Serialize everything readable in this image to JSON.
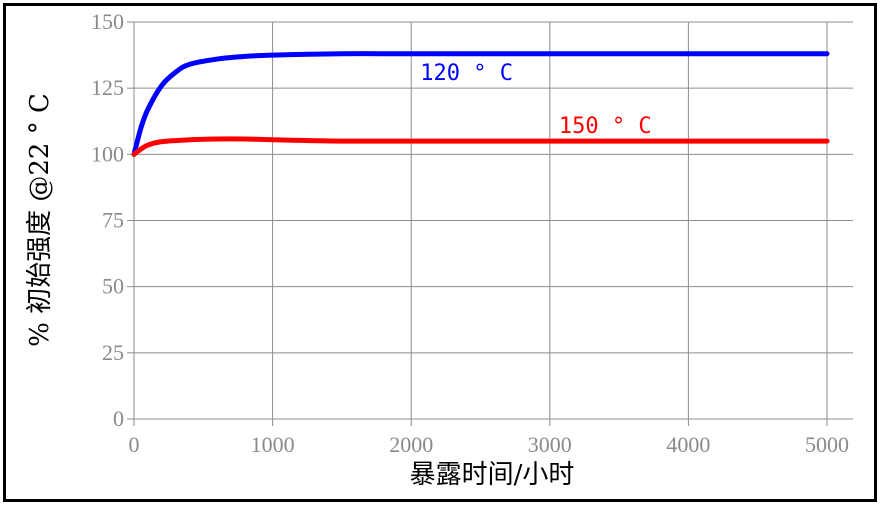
{
  "chart_data": {
    "type": "line",
    "xlabel": "暴露时间/小时",
    "ylabel": "% 初始强度  @22 ° C",
    "xlim": [
      0,
      5000
    ],
    "ylim": [
      0,
      150
    ],
    "xticks": [
      0,
      1000,
      2000,
      3000,
      4000,
      5000
    ],
    "yticks": [
      0,
      25,
      50,
      75,
      100,
      125,
      150
    ],
    "grid": true,
    "series": [
      {
        "name": "120 ° C",
        "color": "#0000ff",
        "x": [
          0,
          50,
          100,
          200,
          300,
          400,
          600,
          800,
          1000,
          1500,
          2000,
          3000,
          4000,
          5000
        ],
        "y": [
          100,
          110,
          117,
          126,
          131,
          134,
          136,
          137,
          137.5,
          138,
          138,
          138,
          138,
          138
        ]
      },
      {
        "name": "150 ° C",
        "color": "#ff0000",
        "x": [
          0,
          50,
          100,
          200,
          400,
          600,
          800,
          1000,
          1500,
          2000,
          3000,
          4000,
          5000
        ],
        "y": [
          100,
          102,
          103.5,
          104.8,
          105.5,
          105.8,
          105.8,
          105.5,
          105,
          105,
          105,
          105,
          105
        ]
      }
    ]
  }
}
